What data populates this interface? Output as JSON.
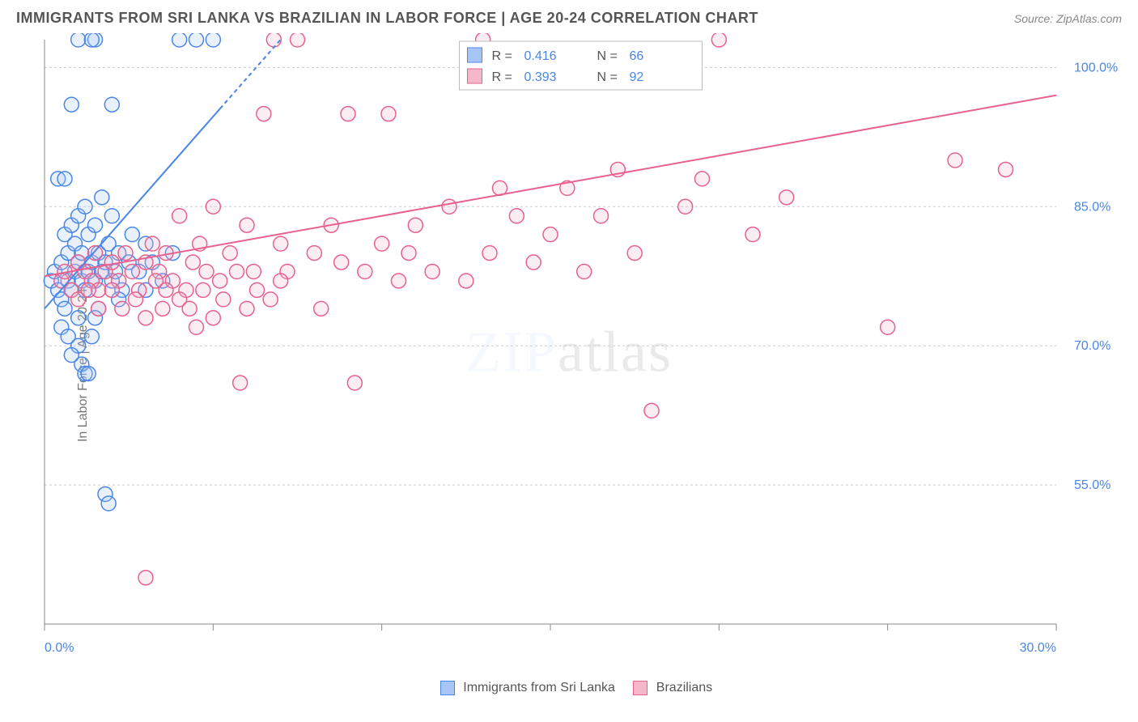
{
  "title": "IMMIGRANTS FROM SRI LANKA VS BRAZILIAN IN LABOR FORCE | AGE 20-24 CORRELATION CHART",
  "source": "Source: ZipAtlas.com",
  "y_axis_label": "In Labor Force | Age 20-24",
  "watermark": "ZIPatlas",
  "chart": {
    "type": "scatter",
    "xlim": [
      0,
      30
    ],
    "ylim": [
      40,
      103
    ],
    "x_ticks": [
      0,
      5,
      10,
      15,
      20,
      25,
      30
    ],
    "x_tick_labels": [
      "0.0%",
      "",
      "",
      "",
      "",
      "",
      "30.0%"
    ],
    "y_ticks": [
      55,
      70,
      85,
      100
    ],
    "y_tick_labels": [
      "55.0%",
      "70.0%",
      "85.0%",
      "100.0%"
    ],
    "grid_color": "#cccccc",
    "background_color": "#ffffff",
    "axis_color": "#888888",
    "tick_label_color": "#4a86e8",
    "tick_label_fontsize": 16,
    "axis_label_color": "#777777",
    "axis_label_fontsize": 16,
    "marker_radius": 9,
    "marker_stroke_width": 1.5,
    "marker_fill_opacity": 0.25,
    "trend_line_width": 2,
    "series": [
      {
        "name": "Immigrants from Sri Lanka",
        "color_stroke": "#4a86e8",
        "color_fill": "#a8c6f5",
        "R": "0.416",
        "N": "66",
        "trend": {
          "x1": 0,
          "y1": 74,
          "x2": 7,
          "y2": 103,
          "dash_after_x": 5.2
        },
        "points": [
          [
            0.2,
            77
          ],
          [
            0.3,
            78
          ],
          [
            0.4,
            76
          ],
          [
            0.5,
            79
          ],
          [
            0.5,
            75
          ],
          [
            0.6,
            82
          ],
          [
            0.6,
            74
          ],
          [
            0.7,
            80
          ],
          [
            0.7,
            77
          ],
          [
            0.8,
            83
          ],
          [
            0.8,
            76
          ],
          [
            0.9,
            78
          ],
          [
            0.9,
            81
          ],
          [
            1.0,
            79
          ],
          [
            1.0,
            84
          ],
          [
            1.0,
            73
          ],
          [
            1.1,
            77
          ],
          [
            1.1,
            80
          ],
          [
            1.2,
            85
          ],
          [
            1.2,
            76
          ],
          [
            1.3,
            78
          ],
          [
            1.3,
            82
          ],
          [
            1.4,
            79
          ],
          [
            1.4,
            71
          ],
          [
            1.5,
            83
          ],
          [
            1.5,
            77
          ],
          [
            1.6,
            80
          ],
          [
            1.6,
            74
          ],
          [
            1.7,
            78
          ],
          [
            1.7,
            86
          ],
          [
            1.8,
            79
          ],
          [
            1.9,
            81
          ],
          [
            2.0,
            77
          ],
          [
            2.0,
            84
          ],
          [
            2.1,
            78
          ],
          [
            2.2,
            80
          ],
          [
            2.3,
            76
          ],
          [
            2.5,
            79
          ],
          [
            2.6,
            82
          ],
          [
            2.8,
            78
          ],
          [
            3.0,
            81
          ],
          [
            3.2,
            79
          ],
          [
            3.5,
            77
          ],
          [
            1.0,
            103
          ],
          [
            1.5,
            103
          ],
          [
            1.4,
            103
          ],
          [
            4.0,
            103
          ],
          [
            4.5,
            103
          ],
          [
            5.0,
            103
          ],
          [
            0.8,
            96
          ],
          [
            2.0,
            96
          ],
          [
            0.4,
            88
          ],
          [
            0.6,
            88
          ],
          [
            1.0,
            70
          ],
          [
            1.1,
            68
          ],
          [
            0.5,
            72
          ],
          [
            0.7,
            71
          ],
          [
            1.2,
            67
          ],
          [
            1.3,
            67
          ],
          [
            0.8,
            69
          ],
          [
            1.8,
            54
          ],
          [
            1.9,
            53
          ],
          [
            1.5,
            73
          ],
          [
            2.2,
            75
          ],
          [
            3.0,
            76
          ],
          [
            3.8,
            80
          ]
        ]
      },
      {
        "name": "Brazilians",
        "color_stroke": "#e8618c",
        "color_fill": "#f5b8cb",
        "R": "0.393",
        "N": "92",
        "trend": {
          "x1": 0,
          "y1": 77.5,
          "x2": 30,
          "y2": 97
        },
        "points": [
          [
            0.5,
            77
          ],
          [
            0.6,
            78
          ],
          [
            0.8,
            76
          ],
          [
            1.0,
            79
          ],
          [
            1.2,
            78
          ],
          [
            1.4,
            77
          ],
          [
            1.5,
            80
          ],
          [
            1.6,
            76
          ],
          [
            1.8,
            78
          ],
          [
            2.0,
            79
          ],
          [
            2.2,
            77
          ],
          [
            2.4,
            80
          ],
          [
            2.6,
            78
          ],
          [
            2.8,
            76
          ],
          [
            3.0,
            79
          ],
          [
            3.2,
            81
          ],
          [
            3.4,
            78
          ],
          [
            3.5,
            74
          ],
          [
            3.6,
            80
          ],
          [
            3.8,
            77
          ],
          [
            4.0,
            84
          ],
          [
            4.2,
            76
          ],
          [
            4.4,
            79
          ],
          [
            4.5,
            72
          ],
          [
            4.6,
            81
          ],
          [
            4.8,
            78
          ],
          [
            5.0,
            85
          ],
          [
            5.2,
            77
          ],
          [
            5.5,
            80
          ],
          [
            5.8,
            66
          ],
          [
            6.0,
            83
          ],
          [
            6.2,
            78
          ],
          [
            6.5,
            95
          ],
          [
            6.8,
            103
          ],
          [
            7.0,
            81
          ],
          [
            7.2,
            78
          ],
          [
            7.5,
            103
          ],
          [
            8.0,
            80
          ],
          [
            8.2,
            74
          ],
          [
            8.5,
            83
          ],
          [
            8.8,
            79
          ],
          [
            9.0,
            95
          ],
          [
            9.2,
            66
          ],
          [
            9.5,
            78
          ],
          [
            10.0,
            81
          ],
          [
            10.2,
            95
          ],
          [
            10.5,
            77
          ],
          [
            10.8,
            80
          ],
          [
            11.0,
            83
          ],
          [
            11.5,
            78
          ],
          [
            12.0,
            85
          ],
          [
            12.5,
            77
          ],
          [
            13.0,
            103
          ],
          [
            13.2,
            80
          ],
          [
            13.5,
            87
          ],
          [
            14.0,
            84
          ],
          [
            14.5,
            79
          ],
          [
            15.0,
            82
          ],
          [
            15.5,
            87
          ],
          [
            16.0,
            78
          ],
          [
            16.5,
            84
          ],
          [
            17.0,
            89
          ],
          [
            17.5,
            80
          ],
          [
            18.0,
            63
          ],
          [
            19.0,
            85
          ],
          [
            19.5,
            88
          ],
          [
            20.0,
            103
          ],
          [
            21.0,
            82
          ],
          [
            22.0,
            86
          ],
          [
            25.0,
            72
          ],
          [
            27.0,
            90
          ],
          [
            28.5,
            89
          ],
          [
            3.0,
            45
          ],
          [
            1.0,
            75
          ],
          [
            1.3,
            76
          ],
          [
            1.6,
            74
          ],
          [
            2.0,
            76
          ],
          [
            2.3,
            74
          ],
          [
            2.7,
            75
          ],
          [
            3.0,
            73
          ],
          [
            3.3,
            77
          ],
          [
            3.6,
            76
          ],
          [
            4.0,
            75
          ],
          [
            4.3,
            74
          ],
          [
            4.7,
            76
          ],
          [
            5.0,
            73
          ],
          [
            5.3,
            75
          ],
          [
            5.7,
            78
          ],
          [
            6.0,
            74
          ],
          [
            6.3,
            76
          ],
          [
            6.7,
            75
          ],
          [
            7.0,
            77
          ]
        ]
      }
    ]
  },
  "stats_legend": {
    "border_color": "#bbbbbb",
    "bg_color": "#ffffff",
    "r_label": "R =",
    "n_label": "N =",
    "value_color": "#4a86e8",
    "label_color": "#555555"
  },
  "bottom_legend": {
    "items": [
      {
        "label": "Immigrants from Sri Lanka",
        "fill": "#a8c6f5",
        "stroke": "#4a86e8"
      },
      {
        "label": "Brazilians",
        "fill": "#f5b8cb",
        "stroke": "#e8618c"
      }
    ]
  }
}
